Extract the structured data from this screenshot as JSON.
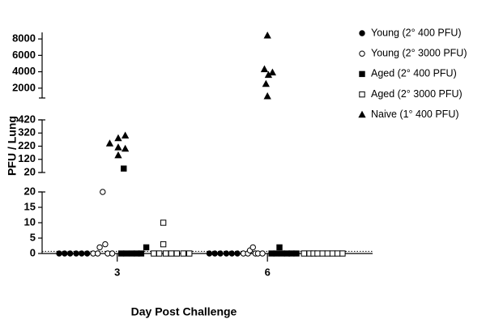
{
  "chart_data": {
    "type": "scatter",
    "y_label": "PFU / Lung",
    "x_label": "Day Post Challenge",
    "xlim": [
      1.5,
      8.1
    ],
    "xticks": [
      3,
      6
    ],
    "panels": [
      {
        "ylim": [
          0,
          20
        ],
        "yticks": [
          0,
          5,
          10,
          15,
          20
        ]
      },
      {
        "ylim": [
          20,
          420
        ],
        "yticks": [
          20,
          120,
          220,
          320,
          420
        ]
      },
      {
        "ylim": [
          800,
          8800
        ],
        "yticks": [
          2000,
          4000,
          6000,
          8000
        ]
      }
    ],
    "detection_limit": 0.7,
    "series": [
      {
        "name": "Young (2° 400 PFU)",
        "marker": "circle",
        "filled": true,
        "color": "#000000",
        "x": [
          1.84,
          1.95,
          2.06,
          2.18,
          2.29,
          2.4,
          4.84,
          4.95,
          5.06,
          5.18,
          5.29,
          5.4
        ],
        "values": [
          0,
          0,
          0,
          0,
          0,
          0,
          0,
          0,
          0,
          0,
          0,
          0
        ]
      },
      {
        "name": "Young (2° 3000 PFU)",
        "marker": "circle",
        "filled": false,
        "color": "#000000",
        "x": [
          2.52,
          2.61,
          2.65,
          2.71,
          2.76,
          2.81,
          2.9,
          5.52,
          5.61,
          5.65,
          5.71,
          5.76,
          5.81,
          5.9
        ],
        "values": [
          0,
          0,
          2,
          20,
          3,
          0,
          0,
          0,
          0,
          1,
          2,
          0,
          0,
          0
        ]
      },
      {
        "name": "Aged (2° 400 PFU)",
        "marker": "square",
        "filled": true,
        "color": "#000000",
        "x": [
          3.08,
          3.18,
          3.29,
          3.39,
          3.48,
          3.58,
          3.13,
          6.08,
          6.18,
          6.29,
          6.39,
          6.48,
          6.58,
          6.24
        ],
        "values": [
          0,
          0,
          0,
          0,
          0,
          2,
          50,
          0,
          0,
          0,
          0,
          0,
          0,
          2
        ]
      },
      {
        "name": "Aged (2° 3000 PFU)",
        "marker": "square",
        "filled": false,
        "color": "#000000",
        "x": [
          3.73,
          3.84,
          3.92,
          3.92,
          3.97,
          4.08,
          4.19,
          4.32,
          4.44,
          6.73,
          6.84,
          6.92,
          7.0,
          7.1,
          7.2,
          7.3,
          7.4,
          7.5
        ],
        "values": [
          0,
          0,
          10,
          3,
          0,
          0,
          0,
          0,
          0,
          0,
          0,
          0,
          0,
          0,
          0,
          0,
          0,
          0
        ]
      },
      {
        "name": "Naive (1° 400 PFU)",
        "marker": "triangle",
        "filled": true,
        "color": "#000000",
        "x": [
          2.85,
          3.02,
          3.16,
          3.02,
          3.16,
          3.02,
          6.0,
          5.94,
          6.1,
          6.02,
          5.97,
          6.0
        ],
        "values": [
          240,
          280,
          300,
          210,
          200,
          150,
          8400,
          4300,
          3900,
          3600,
          2500,
          1000
        ]
      }
    ]
  }
}
